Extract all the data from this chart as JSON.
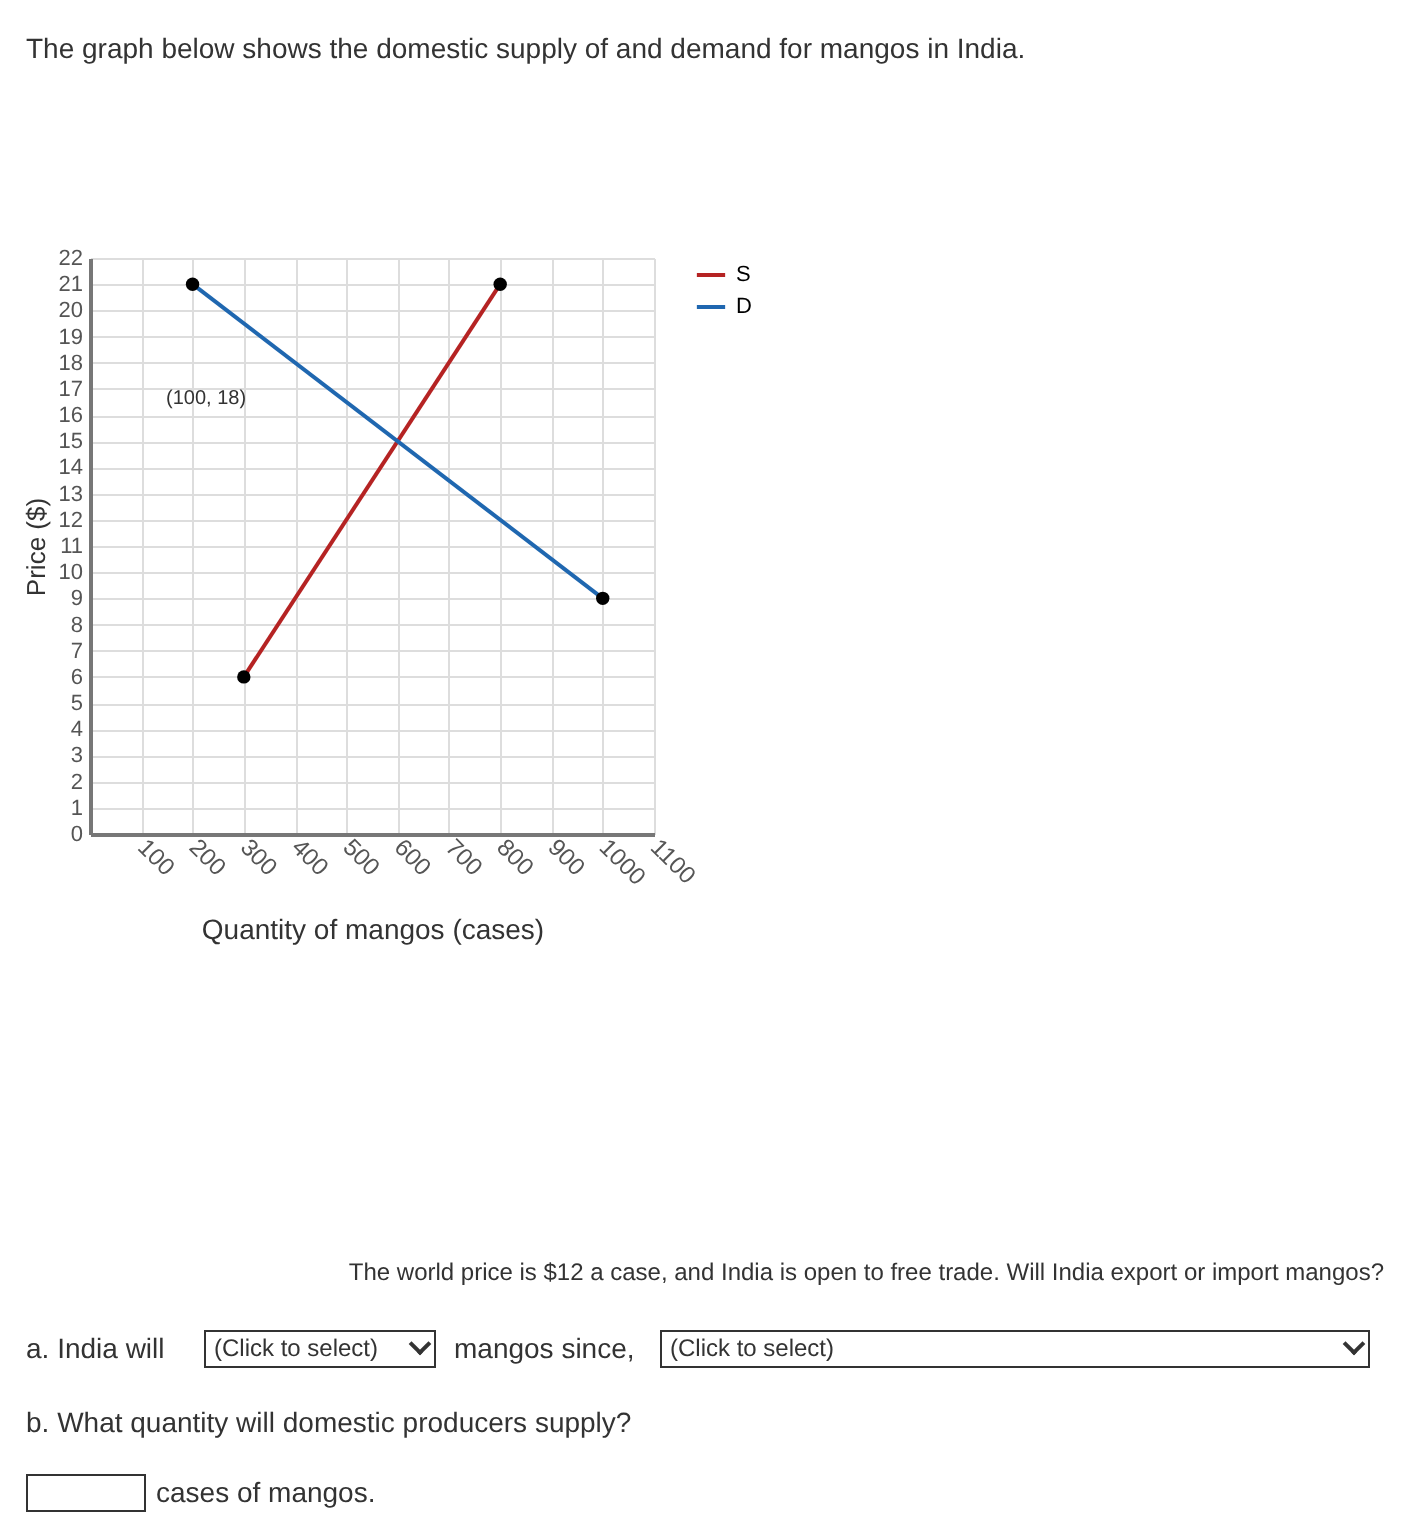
{
  "chart_data": {
    "type": "line",
    "title": "The graph below shows the domestic supply of and demand for mangos in India.",
    "xlabel": "Quantity of mangos (cases)",
    "ylabel": "Price ($)",
    "series": [
      {
        "name": "S",
        "color": "#b52323",
        "x": [
          300,
          800
        ],
        "values": [
          6,
          21
        ]
      },
      {
        "name": "D",
        "color": "#1f67b0",
        "x": [
          200,
          1000
        ],
        "values": [
          21,
          9
        ]
      }
    ],
    "xlim": [
      0,
      1100
    ],
    "xticks": [
      100,
      200,
      300,
      400,
      500,
      600,
      700,
      800,
      900,
      1000,
      1100
    ],
    "ylim": [
      0,
      22
    ],
    "yticks": [
      0,
      1,
      2,
      3,
      4,
      5,
      6,
      7,
      8,
      9,
      10,
      11,
      12,
      13,
      14,
      15,
      16,
      17,
      18,
      19,
      20,
      21,
      22
    ],
    "grid": true,
    "marker": "circle",
    "legend": "top right",
    "annotations": [
      "(100, 18)",
      "The world price is $12 a case, and India is open to free trade. Will India export or import mangos?",
      "a. India will",
      "(Click to select)",
      "mangos since,",
      "(Click to select)",
      "b. What quantity will domestic producers supply?",
      "cases of mangos."
    ]
  }
}
